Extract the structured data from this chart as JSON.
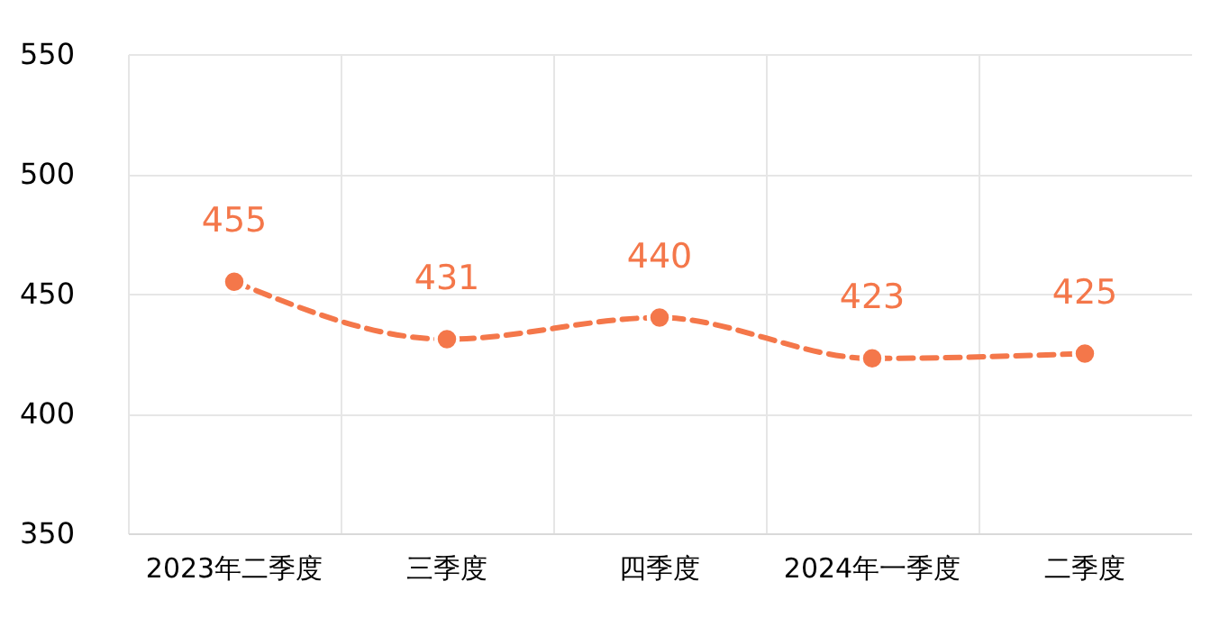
{
  "chart_data": {
    "type": "line",
    "categories": [
      "2023年二季度",
      "三季度",
      "四季度",
      "2024年一季度",
      "二季度"
    ],
    "series": [
      {
        "color": "#f4774a",
        "values": [
          455,
          431,
          440,
          423,
          425
        ]
      }
    ],
    "ylim": [
      350,
      550
    ],
    "yticks": [
      350,
      400,
      450,
      500,
      550
    ],
    "grid": true,
    "data_labels": true,
    "marker": "circle",
    "line_style": "dashed",
    "legend": false
  }
}
